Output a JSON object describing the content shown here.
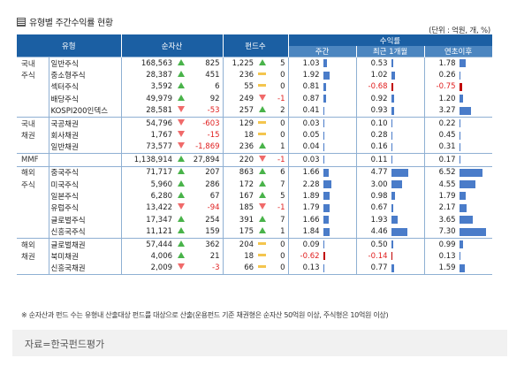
{
  "title": "유형별 주간수익률 현황",
  "unit": "(단위 : 억원, 개, %)",
  "headers": {
    "type": "유형",
    "net_assets": "순자산",
    "fund_count": "펀드수",
    "returns": "수익률",
    "weekly": "주간",
    "one_month": "최근 1개월",
    "ytd": "연초이후"
  },
  "rows": [
    {
      "cat": "국내",
      "name": "일반주식",
      "na": "168,563",
      "nd": "up",
      "nc": "825",
      "fc": "1,225",
      "fd": "up",
      "fch": "5",
      "w": "1.03",
      "m": "0.53",
      "y": "1.78",
      "wn": 1.03,
      "mn": 0.53,
      "yn": 1.78
    },
    {
      "cat": "주식",
      "name": "중소형주식",
      "na": "28,387",
      "nd": "up",
      "nc": "451",
      "fc": "236",
      "fd": "eq",
      "fch": "0",
      "w": "1.92",
      "m": "1.02",
      "y": "0.26",
      "wn": 1.92,
      "mn": 1.02,
      "yn": 0.26
    },
    {
      "cat": "",
      "name": "섹터주식",
      "na": "3,592",
      "nd": "up",
      "nc": "6",
      "fc": "55",
      "fd": "eq",
      "fch": "0",
      "w": "0.81",
      "m": "-0.68",
      "y": "-0.75",
      "wn": 0.81,
      "mn": -0.68,
      "yn": -0.75
    },
    {
      "cat": "",
      "name": "배당주식",
      "na": "49,979",
      "nd": "up",
      "nc": "92",
      "fc": "249",
      "fd": "dn",
      "fch": "-1",
      "w": "0.87",
      "m": "0.92",
      "y": "1.20",
      "wn": 0.87,
      "mn": 0.92,
      "yn": 1.2
    },
    {
      "cat": "",
      "name": "KOSPI200인덱스",
      "na": "28,581",
      "nd": "dn",
      "nc": "-53",
      "fc": "257",
      "fd": "up",
      "fch": "2",
      "w": "0.41",
      "m": "0.93",
      "y": "3.27",
      "wn": 0.41,
      "mn": 0.93,
      "yn": 3.27
    },
    {
      "cat": "국내",
      "name": "국공채권",
      "na": "54,796",
      "nd": "dn",
      "nc": "-603",
      "fc": "129",
      "fd": "eq",
      "fch": "0",
      "w": "0.03",
      "m": "0.10",
      "y": "0.22",
      "wn": 0.03,
      "mn": 0.1,
      "yn": 0.22
    },
    {
      "cat": "채권",
      "name": "회사채권",
      "na": "1,767",
      "nd": "dn",
      "nc": "-15",
      "fc": "18",
      "fd": "eq",
      "fch": "0",
      "w": "0.05",
      "m": "0.28",
      "y": "0.45",
      "wn": 0.05,
      "mn": 0.28,
      "yn": 0.45
    },
    {
      "cat": "",
      "name": "일반채권",
      "na": "73,577",
      "nd": "dn",
      "nc": "-1,869",
      "fc": "236",
      "fd": "up",
      "fch": "1",
      "w": "0.04",
      "m": "0.16",
      "y": "0.31",
      "wn": 0.04,
      "mn": 0.16,
      "yn": 0.31
    },
    {
      "cat": "MMF",
      "name": "",
      "na": "1,138,914",
      "nd": "up",
      "nc": "27,894",
      "fc": "220",
      "fd": "dn",
      "fch": "-1",
      "w": "0.03",
      "m": "0.11",
      "y": "0.17",
      "wn": 0.03,
      "mn": 0.11,
      "yn": 0.17
    },
    {
      "cat": "해외",
      "name": "중국주식",
      "na": "71,717",
      "nd": "up",
      "nc": "207",
      "fc": "863",
      "fd": "up",
      "fch": "6",
      "w": "1.66",
      "m": "4.77",
      "y": "6.52",
      "wn": 1.66,
      "mn": 4.77,
      "yn": 6.52
    },
    {
      "cat": "주식",
      "name": "미국주식",
      "na": "5,960",
      "nd": "up",
      "nc": "286",
      "fc": "172",
      "fd": "up",
      "fch": "7",
      "w": "2.28",
      "m": "3.00",
      "y": "4.55",
      "wn": 2.28,
      "mn": 3.0,
      "yn": 4.55
    },
    {
      "cat": "",
      "name": "일본주식",
      "na": "6,280",
      "nd": "up",
      "nc": "67",
      "fc": "167",
      "fd": "up",
      "fch": "5",
      "w": "1.89",
      "m": "0.98",
      "y": "1.79",
      "wn": 1.89,
      "mn": 0.98,
      "yn": 1.79
    },
    {
      "cat": "",
      "name": "유럽주식",
      "na": "13,422",
      "nd": "dn",
      "nc": "-94",
      "fc": "185",
      "fd": "dn",
      "fch": "-1",
      "w": "1.79",
      "m": "0.67",
      "y": "2.17",
      "wn": 1.79,
      "mn": 0.67,
      "yn": 2.17
    },
    {
      "cat": "",
      "name": "글로벌주식",
      "na": "17,347",
      "nd": "up",
      "nc": "254",
      "fc": "391",
      "fd": "up",
      "fch": "7",
      "w": "1.66",
      "m": "1.93",
      "y": "3.65",
      "wn": 1.66,
      "mn": 1.93,
      "yn": 3.65
    },
    {
      "cat": "",
      "name": "신흥국주식",
      "na": "11,121",
      "nd": "up",
      "nc": "159",
      "fc": "175",
      "fd": "up",
      "fch": "1",
      "w": "1.84",
      "m": "4.46",
      "y": "7.30",
      "wn": 1.84,
      "mn": 4.46,
      "yn": 7.3
    },
    {
      "cat": "해외",
      "name": "글로벌채권",
      "na": "57,444",
      "nd": "up",
      "nc": "362",
      "fc": "204",
      "fd": "eq",
      "fch": "0",
      "w": "0.09",
      "m": "0.50",
      "y": "0.99",
      "wn": 0.09,
      "mn": 0.5,
      "yn": 0.99
    },
    {
      "cat": "채권",
      "name": "북미채권",
      "na": "4,006",
      "nd": "up",
      "nc": "21",
      "fc": "18",
      "fd": "eq",
      "fch": "0",
      "w": "-0.62",
      "m": "-0.14",
      "y": "0.13",
      "wn": -0.62,
      "mn": -0.14,
      "yn": 0.13
    },
    {
      "cat": "",
      "name": "신흥국채권",
      "na": "2,009",
      "nd": "dn",
      "nc": "-3",
      "fc": "66",
      "fd": "eq",
      "fch": "0",
      "w": "0.13",
      "m": "0.77",
      "y": "1.59",
      "wn": 0.13,
      "mn": 0.77,
      "yn": 1.59
    }
  ],
  "colors": {
    "positive_bar": "#4a7cc9",
    "negative_bar": "#c00000",
    "negative_text": "#e02020",
    "up_arrow": "#49b34a",
    "down_arrow": "#f06a6a",
    "flat": "#f4c54e",
    "header": "#1b5fa3",
    "subheader": "#4c86c0"
  },
  "note": "※ 순자산과 펀드 수는 유형내 산출대상 펀드를 대상으로 산출(운용펀드 기준 채권형은 순자산 50억원 이상, 주식형은 10억원 이상)",
  "source": "자료=한국펀드평가"
}
